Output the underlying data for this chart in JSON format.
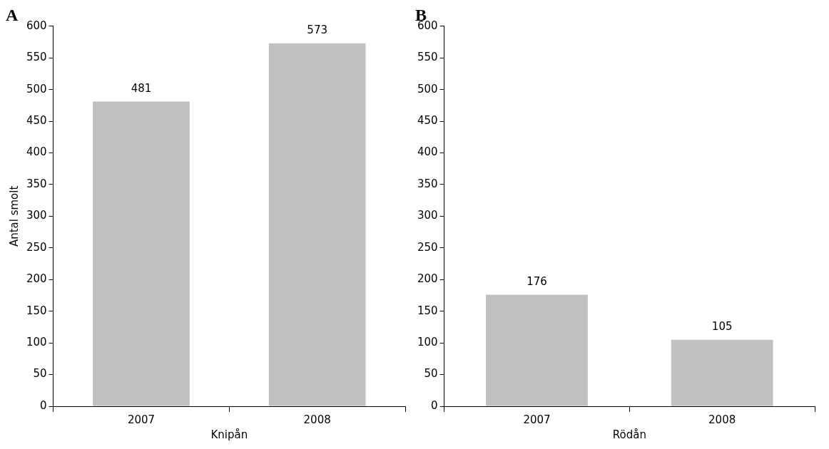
{
  "chart_data": [
    {
      "type": "bar",
      "title": "A",
      "xlabel": "Knipån",
      "ylabel": "Antal smolt",
      "categories": [
        "2007",
        "2008"
      ],
      "values": [
        481,
        573
      ],
      "color": "#c0c0c0",
      "ylim": [
        0,
        600
      ],
      "yticks": [
        0,
        50,
        100,
        150,
        200,
        250,
        300,
        350,
        400,
        450,
        500,
        550,
        600
      ],
      "grid": false,
      "legend": false,
      "data_labels": true
    },
    {
      "type": "bar",
      "title": "B",
      "xlabel": "Rödån",
      "categories": [
        "2007",
        "2008"
      ],
      "values": [
        176,
        105
      ],
      "color": "#c0c0c0",
      "ylim": [
        0,
        600
      ],
      "yticks": [
        0,
        50,
        100,
        150,
        200,
        250,
        300,
        350,
        400,
        450,
        500,
        550,
        600
      ],
      "grid": false,
      "legend": false,
      "data_labels": true
    }
  ]
}
